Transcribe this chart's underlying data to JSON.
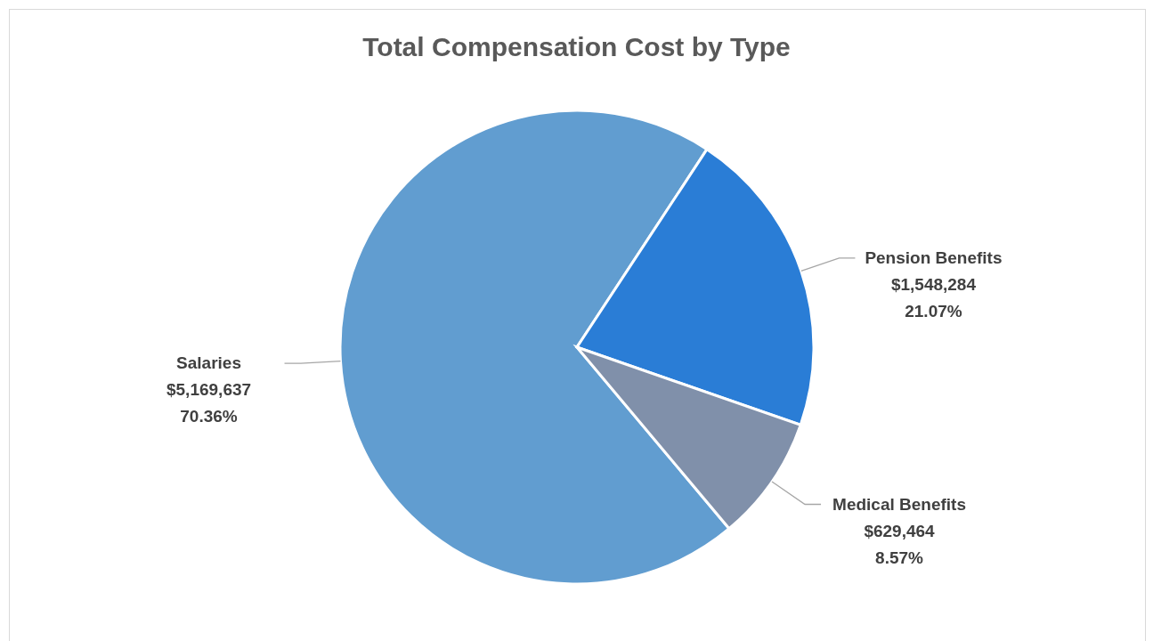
{
  "chart_data": {
    "type": "pie",
    "title": "Total Compensation Cost by Type",
    "categories": [
      "Salaries",
      "Pension Benefits",
      "Medical Benefits"
    ],
    "values": [
      5169637,
      1548284,
      629464
    ],
    "colors": [
      "#619dd0",
      "#2a7dd6",
      "#8090aa"
    ],
    "value_labels": [
      "$5,169,637\n70.36%",
      "$1,548,284\n21.07%",
      "$629,464\n8.57%"
    ],
    "legend": false
  }
}
